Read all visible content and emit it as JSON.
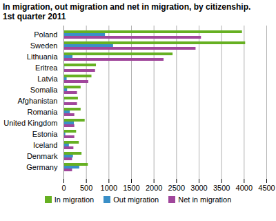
{
  "chart_data": {
    "type": "bar",
    "orientation": "horizontal",
    "title": "In migration, out migration and net in migration, by citizenship.",
    "subtitle": "1st quarter 2011",
    "categories": [
      "Poland",
      "Sweden",
      "Lithuania",
      "Eritrea",
      "Latvia",
      "Somalia",
      "Afghanistan",
      "Romania",
      "United Kingdom",
      "Estonia",
      "Iceland",
      "Denmark",
      "Germany"
    ],
    "series": [
      {
        "name": "In migration",
        "color": "#66b022",
        "values": [
          3960,
          4030,
          2420,
          720,
          620,
          380,
          320,
          380,
          470,
          280,
          340,
          400,
          540
        ]
      },
      {
        "name": "Out migration",
        "color": "#3a8fc7",
        "values": [
          920,
          1100,
          200,
          20,
          70,
          80,
          20,
          140,
          230,
          40,
          120,
          210,
          350
        ]
      },
      {
        "name": "Net in migration",
        "color": "#a0469b",
        "values": [
          3050,
          2930,
          2220,
          700,
          550,
          300,
          300,
          240,
          240,
          240,
          220,
          190,
          190
        ]
      }
    ],
    "xlim": [
      0,
      4500
    ],
    "xticks": [
      0,
      500,
      1000,
      1500,
      2000,
      2500,
      3000,
      3500,
      4000,
      4500
    ],
    "grid": true,
    "legend": "bottom"
  }
}
